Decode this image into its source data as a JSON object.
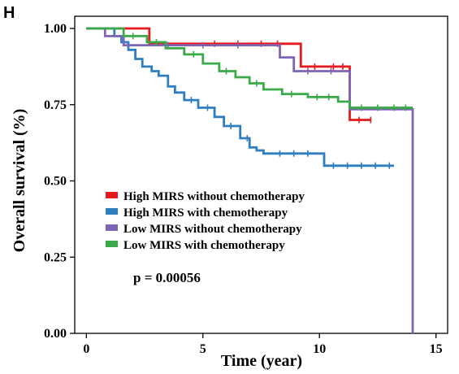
{
  "panel_label": "H",
  "chart_data": {
    "type": "line",
    "subtype": "kaplan-meier",
    "xlabel": "Time (year)",
    "ylabel": "Overall survival (%)",
    "xlim": [
      -0.5,
      15.5
    ],
    "ylim": [
      0,
      1.04
    ],
    "x_ticks": [
      0,
      5,
      10,
      15
    ],
    "x_tick_labels": [
      "0",
      "5",
      "10",
      "15"
    ],
    "y_ticks": [
      0,
      0.25,
      0.5,
      0.75,
      1.0
    ],
    "y_tick_labels": [
      "0.00",
      "0.25",
      "0.50",
      "0.75",
      "1.00"
    ],
    "grid": false,
    "legend_position": "center-left",
    "annotation": "p = 0.00056",
    "series": [
      {
        "name": "High MIRS without chemotherapy",
        "color": "#e41a1c",
        "x": [
          0,
          2.7,
          2.7,
          9.2,
          9.2,
          11.3,
          11.3,
          12.2
        ],
        "y": [
          1.0,
          1.0,
          0.95,
          0.95,
          0.875,
          0.875,
          0.7,
          0.7
        ],
        "censor_x": [
          5.5,
          6.5,
          7.5,
          8.2,
          9.8,
          10.6,
          11.0,
          11.7,
          12.2
        ]
      },
      {
        "name": "High MIRS with chemotherapy",
        "color": "#2f7ebf",
        "x": [
          0,
          1.2,
          1.2,
          1.5,
          1.5,
          1.8,
          1.8,
          2.1,
          2.1,
          2.4,
          2.4,
          2.8,
          2.8,
          3.1,
          3.1,
          3.5,
          3.5,
          3.8,
          3.8,
          4.2,
          4.2,
          4.8,
          4.8,
          5.5,
          5.5,
          5.9,
          5.9,
          6.6,
          6.6,
          7.0,
          7.0,
          7.3,
          7.3,
          7.6,
          7.6,
          10.2,
          10.2,
          13.2
        ],
        "y": [
          1.0,
          1.0,
          0.975,
          0.975,
          0.955,
          0.955,
          0.93,
          0.93,
          0.9,
          0.9,
          0.875,
          0.875,
          0.86,
          0.86,
          0.845,
          0.845,
          0.81,
          0.81,
          0.79,
          0.79,
          0.765,
          0.765,
          0.74,
          0.74,
          0.71,
          0.71,
          0.68,
          0.68,
          0.64,
          0.64,
          0.61,
          0.61,
          0.6,
          0.6,
          0.59,
          0.59,
          0.55,
          0.55
        ],
        "censor_x": [
          4.5,
          5.2,
          6.2,
          6.9,
          8.3,
          8.9,
          9.5,
          10.6,
          11.2,
          11.8,
          12.4,
          13.0
        ]
      },
      {
        "name": "Low MIRS without chemotherapy",
        "color": "#8064b4",
        "x": [
          0,
          0.8,
          0.8,
          1.6,
          1.6,
          8.3,
          8.3,
          8.9,
          8.9,
          11.3,
          11.3,
          14.0,
          14.0
        ],
        "y": [
          1.0,
          1.0,
          0.975,
          0.975,
          0.945,
          0.945,
          0.905,
          0.905,
          0.86,
          0.86,
          0.735,
          0.735,
          0.0
        ],
        "censor_x": [
          3.5,
          5.0,
          6.5,
          9.5,
          10.5
        ]
      },
      {
        "name": "Low MIRS with chemotherapy",
        "color": "#3aaa48",
        "x": [
          0,
          1.6,
          1.6,
          2.6,
          2.6,
          3.4,
          3.4,
          4.2,
          4.2,
          5.0,
          5.0,
          5.7,
          5.7,
          6.4,
          6.4,
          7.0,
          7.0,
          7.6,
          7.6,
          8.4,
          8.4,
          9.5,
          9.5,
          10.8,
          10.8,
          11.3,
          11.3,
          14.0
        ],
        "y": [
          1.0,
          1.0,
          0.975,
          0.975,
          0.955,
          0.955,
          0.935,
          0.935,
          0.915,
          0.915,
          0.885,
          0.885,
          0.86,
          0.86,
          0.84,
          0.84,
          0.82,
          0.82,
          0.8,
          0.8,
          0.785,
          0.785,
          0.775,
          0.775,
          0.76,
          0.76,
          0.74,
          0.74
        ],
        "censor_x": [
          2.0,
          3.0,
          4.6,
          6.0,
          7.3,
          8.8,
          9.9,
          10.4,
          11.8,
          12.5,
          13.2,
          13.7
        ]
      }
    ]
  }
}
